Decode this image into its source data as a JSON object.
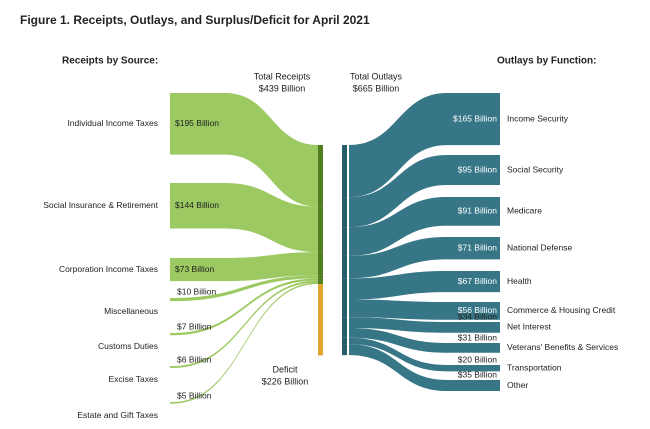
{
  "chart_data": {
    "type": "sankey",
    "title": "Figure 1. Receipts, Outlays, and Surplus/Deficit for April 2021",
    "left_title": "Receipts by Source:",
    "right_title": "Outlays by Function:",
    "total_receipts": [
      "Total Receipts",
      "$439 Billion"
    ],
    "total_outlays": [
      "Total Outlays",
      "$665 Billion"
    ],
    "deficit": {
      "label": [
        "Deficit",
        "$226 Billion"
      ],
      "value": 226,
      "color": "#e0a52c"
    },
    "sources": {
      "color": "#97c65a",
      "node_color": "#4f7d1f",
      "categories": [
        "Individual Income Taxes",
        "Social Insurance & Retirement",
        "Corporation Income Taxes",
        "Miscellaneous",
        "Customs Duties",
        "Excise Taxes",
        "Estate and Gift Taxes"
      ],
      "values": [
        195,
        144,
        73,
        10,
        7,
        6,
        5
      ],
      "value_labels": [
        "$195 Billion",
        "$144 Billion",
        "$73 Billion",
        "$10 Billion",
        "$7 Billion",
        "$6 Billion",
        "$5 Billion"
      ]
    },
    "outlays": {
      "color": "#2b6f80",
      "node_color": "#245e6b",
      "categories": [
        "Income Security",
        "Social Security",
        "Medicare",
        "National Defense",
        "Health",
        "Commerce & Housing Credit",
        "Net Interest",
        "Veterans' Benefits & Services",
        "Transportation",
        "Other"
      ],
      "values": [
        165,
        95,
        91,
        71,
        67,
        56,
        34,
        31,
        20,
        35
      ],
      "value_labels": [
        "$165 Billion",
        "$95 Billion",
        "$91 Billion",
        "$71 Billion",
        "$67 Billion",
        "$56 Billion",
        "$34 Billion",
        "$31 Billion",
        "$20 Billion",
        "$35 Billion"
      ]
    }
  }
}
